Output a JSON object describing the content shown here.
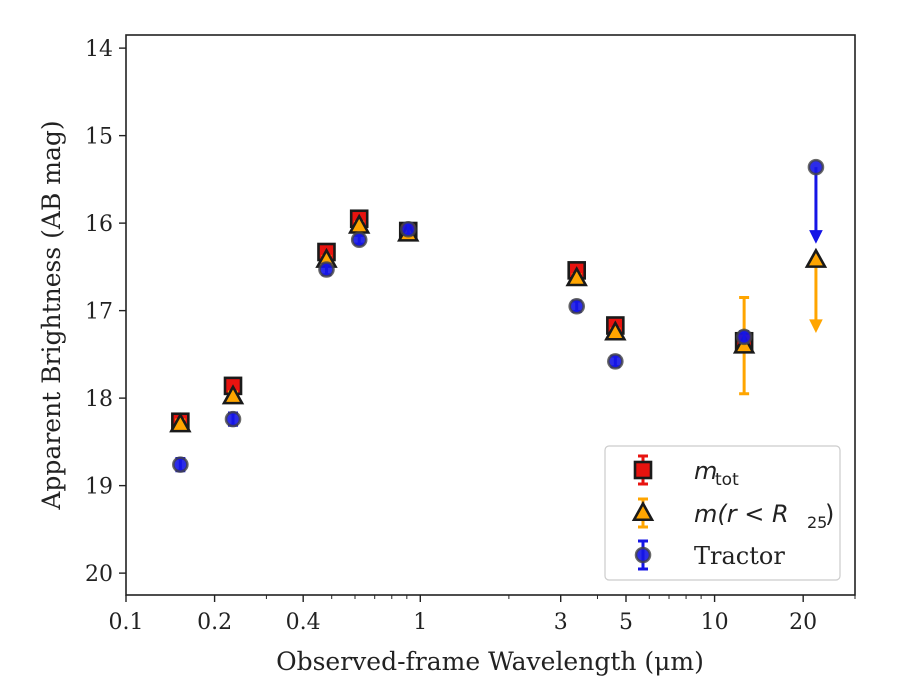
{
  "chart_data": {
    "type": "scatter",
    "title": "",
    "xlabel": "Observed-frame Wavelength (μm)",
    "ylabel": "Apparent Brightness (AB mag)",
    "xscale": "log",
    "xlim": [
      0.1,
      30
    ],
    "ylim": [
      20.25,
      13.85
    ],
    "y_inverted": true,
    "xticks": [
      0.1,
      0.2,
      0.4,
      1,
      3,
      5,
      10,
      20
    ],
    "xtick_labels": [
      "0.1",
      "0.2",
      "0.4",
      "1",
      "3",
      "5",
      "10",
      "20"
    ],
    "yticks": [
      14,
      15,
      16,
      17,
      18,
      19,
      20
    ],
    "ytick_labels": [
      "14",
      "15",
      "16",
      "17",
      "18",
      "19",
      "20"
    ],
    "grid": false,
    "legend_position": "bottom-right",
    "series": [
      {
        "name": "m_tot",
        "legend_label": "tot",
        "marker": "square",
        "color": "#e8130f",
        "edge": "#1a1a1a",
        "points": [
          {
            "x": 0.153,
            "y": 18.27,
            "err": 0.05
          },
          {
            "x": 0.231,
            "y": 17.86,
            "err": 0.05
          },
          {
            "x": 0.48,
            "y": 16.33,
            "err": 0.04
          },
          {
            "x": 0.62,
            "y": 15.95,
            "err": 0.04
          },
          {
            "x": 0.91,
            "y": 16.09,
            "err": 0.04
          },
          {
            "x": 3.4,
            "y": 16.54,
            "err": 0.04
          },
          {
            "x": 4.6,
            "y": 17.17,
            "err": 0.04
          },
          {
            "x": 12.6,
            "y": 17.35,
            "err": 0.05
          }
        ]
      },
      {
        "name": "m(r < R25)",
        "legend_label": "(r < R25)",
        "marker": "triangle",
        "color": "#ffa500",
        "edge": "#1a1a1a",
        "points": [
          {
            "x": 0.153,
            "y": 18.3,
            "err": 0.05
          },
          {
            "x": 0.231,
            "y": 17.98,
            "err": 0.05
          },
          {
            "x": 0.48,
            "y": 16.42,
            "err": 0.04
          },
          {
            "x": 0.62,
            "y": 16.03,
            "err": 0.04
          },
          {
            "x": 0.91,
            "y": 16.12,
            "err": 0.04
          },
          {
            "x": 3.4,
            "y": 16.63,
            "err": 0.04
          },
          {
            "x": 4.6,
            "y": 17.25,
            "err": 0.04
          },
          {
            "x": 12.6,
            "y": 17.4,
            "err": 0.55
          },
          {
            "x": 22.1,
            "y": 16.42,
            "upper_limit": true,
            "limit_to": 17.22
          }
        ]
      },
      {
        "name": "Tractor",
        "legend_label": "Tractor",
        "marker": "circle",
        "color": "#1515e6",
        "edge": "#444444",
        "points": [
          {
            "x": 0.153,
            "y": 18.76,
            "err": 0.07
          },
          {
            "x": 0.231,
            "y": 18.24,
            "err": 0.07
          },
          {
            "x": 0.48,
            "y": 16.53,
            "err": 0.06
          },
          {
            "x": 0.62,
            "y": 16.19,
            "err": 0.05
          },
          {
            "x": 0.91,
            "y": 16.07,
            "err": 0.06
          },
          {
            "x": 3.4,
            "y": 16.95,
            "err": 0.06
          },
          {
            "x": 4.6,
            "y": 17.58,
            "err": 0.06
          },
          {
            "x": 12.6,
            "y": 17.3,
            "err": 0.06
          },
          {
            "x": 22.1,
            "y": 15.36,
            "upper_limit": true,
            "limit_to": 16.2
          }
        ]
      }
    ]
  }
}
